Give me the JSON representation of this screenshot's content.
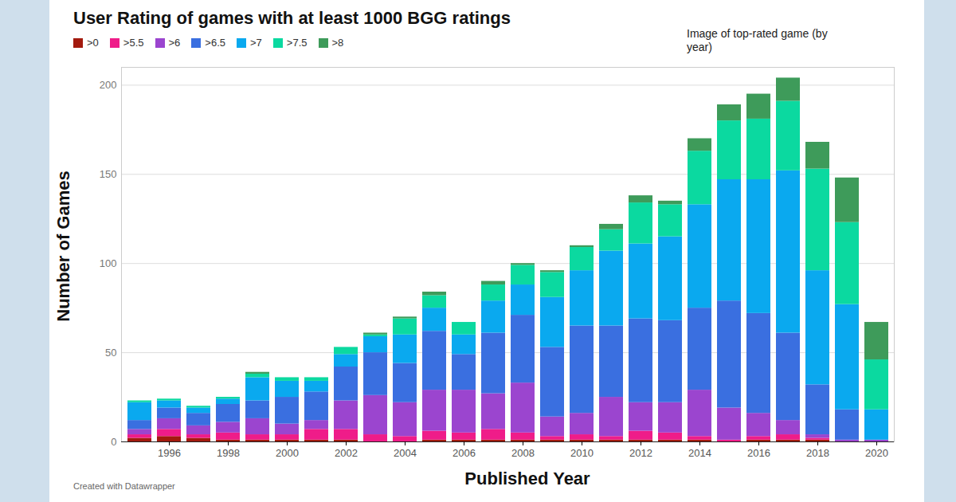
{
  "chart_data": {
    "type": "bar",
    "stacked": true,
    "title": "User Rating of games with at least 1000 BGG ratings",
    "annotation": "Image of top-rated game (by year)",
    "caption": "Created with Datawrapper",
    "x_label": "Published Year",
    "y_label": "Number of Games",
    "categories": [
      null,
      "1996",
      null,
      "1998",
      null,
      "2000",
      null,
      "2002",
      null,
      "2004",
      null,
      "2006",
      null,
      "2008",
      null,
      "2010",
      null,
      "2012",
      null,
      "2014",
      null,
      "2016",
      null,
      "2018",
      null,
      "2020"
    ],
    "series": [
      {
        "name": ">0",
        "color": "#a31a0e",
        "values": [
          2,
          3,
          2,
          1,
          1,
          1,
          1,
          1,
          0,
          0,
          1,
          1,
          1,
          1,
          1,
          1,
          1,
          1,
          1,
          1,
          0,
          1,
          1,
          1,
          0,
          0
        ]
      },
      {
        "name": ">5.5",
        "color": "#ef1c89",
        "values": [
          2,
          4,
          2,
          4,
          3,
          3,
          6,
          6,
          4,
          3,
          5,
          4,
          6,
          4,
          2,
          3,
          2,
          5,
          4,
          2,
          1,
          2,
          3,
          1,
          0,
          0
        ]
      },
      {
        "name": ">6",
        "color": "#9b45cf",
        "values": [
          3,
          6,
          5,
          6,
          9,
          6,
          5,
          16,
          22,
          19,
          23,
          24,
          20,
          28,
          11,
          12,
          22,
          16,
          17,
          26,
          18,
          13,
          8,
          2,
          1,
          1
        ]
      },
      {
        "name": ">6.5",
        "color": "#3a6fe0",
        "values": [
          5,
          6,
          7,
          10,
          10,
          15,
          16,
          19,
          24,
          22,
          33,
          20,
          34,
          38,
          39,
          49,
          40,
          47,
          46,
          46,
          60,
          56,
          49,
          28,
          17,
          0
        ]
      },
      {
        "name": ">7",
        "color": "#0aa9ef",
        "values": [
          10,
          4,
          3,
          3,
          13,
          9,
          6,
          7,
          9,
          16,
          13,
          11,
          18,
          17,
          28,
          31,
          42,
          42,
          47,
          58,
          68,
          75,
          91,
          64,
          59,
          17
        ]
      },
      {
        "name": ">7.5",
        "color": "#0bd9a0",
        "values": [
          1,
          1,
          1,
          1,
          2,
          2,
          2,
          4,
          1,
          9,
          7,
          7,
          9,
          11,
          14,
          13,
          12,
          23,
          18,
          30,
          33,
          34,
          39,
          57,
          46,
          28
        ]
      },
      {
        "name": ">8",
        "color": "#3e9b5a",
        "values": [
          0,
          0,
          0,
          0,
          1,
          0,
          0,
          0,
          1,
          1,
          2,
          0,
          2,
          1,
          1,
          1,
          3,
          4,
          2,
          7,
          9,
          14,
          13,
          15,
          25,
          21
        ]
      }
    ],
    "ylim": [
      0,
      210
    ],
    "yticks": [
      0,
      50,
      100,
      150,
      200
    ],
    "grid": true,
    "legend": "top-left"
  }
}
